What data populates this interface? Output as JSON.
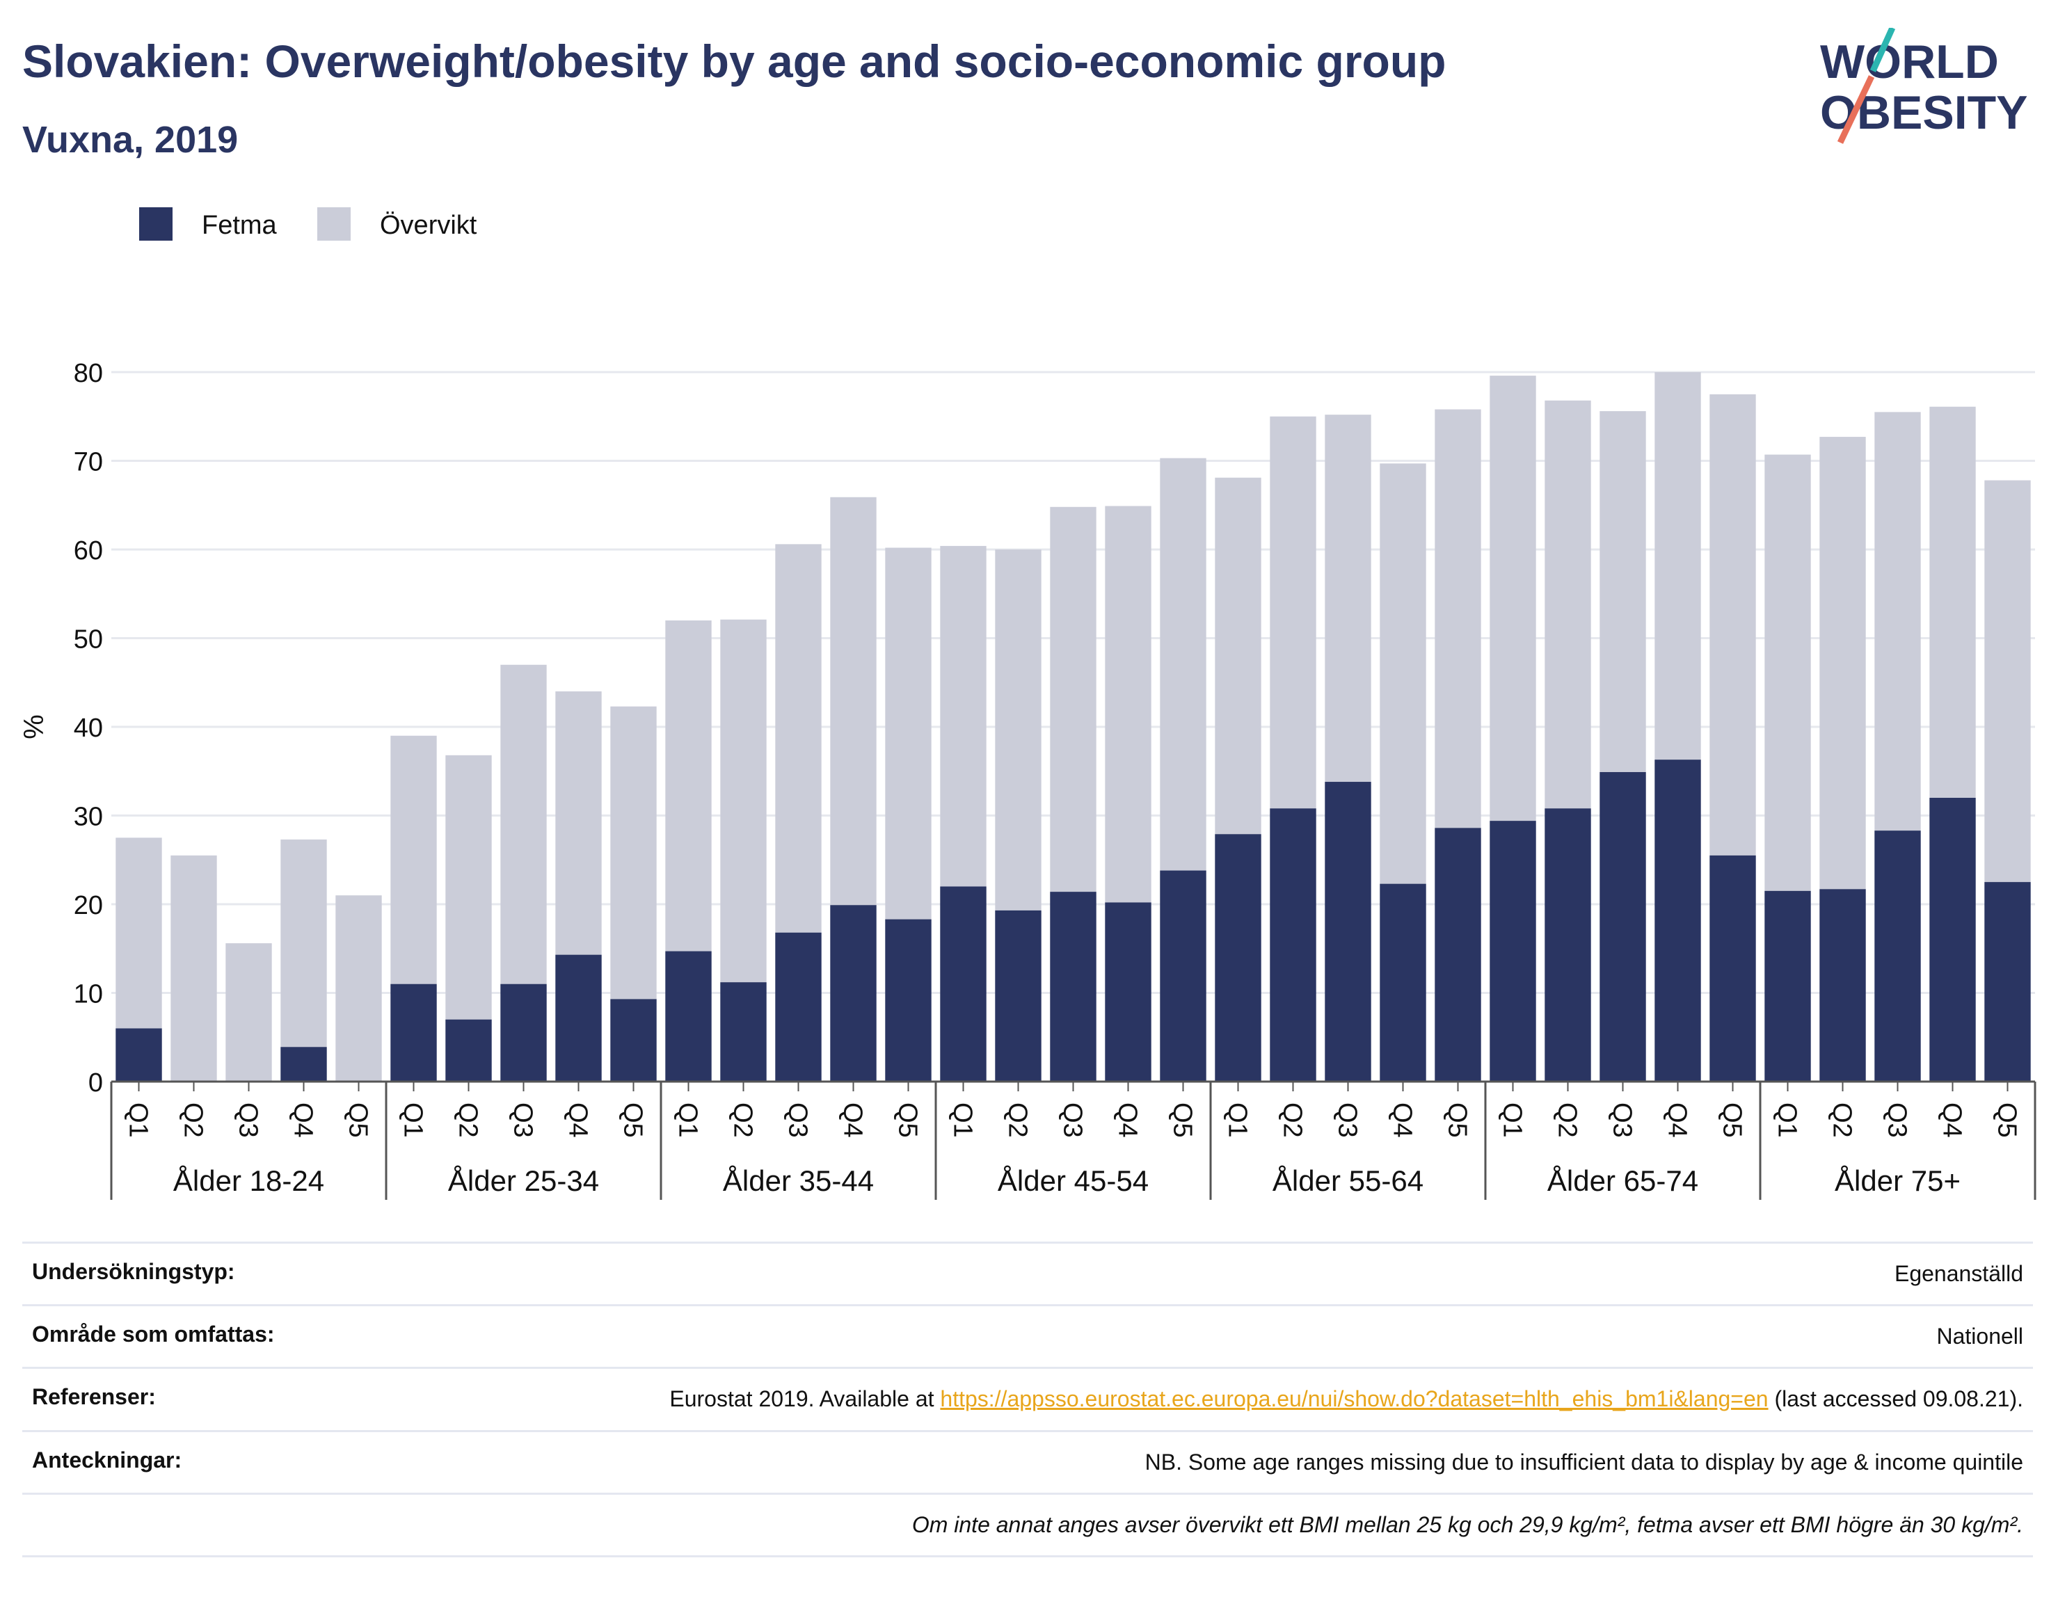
{
  "header": {
    "title": "Slovakien: Overweight/obesity by age and socio-economic group",
    "subtitle": "Vuxna, 2019"
  },
  "logo": {
    "line1": "WORLD",
    "line2": "OBESITY",
    "accent_colors": [
      "#2bb5b0",
      "#e8705a"
    ]
  },
  "chart_data": {
    "type": "bar",
    "stacked": true,
    "ylabel": "%",
    "ylim": [
      0,
      80
    ],
    "yticks": [
      0,
      10,
      20,
      30,
      40,
      50,
      60,
      70,
      80
    ],
    "grid": true,
    "legend_position": "top-left",
    "colors": {
      "fetma": "#2a3562",
      "overvikt": "#cbcdd9"
    },
    "legend": [
      {
        "name": "Fetma",
        "color": "#2a3562"
      },
      {
        "name": "Övervikt",
        "color": "#cbcdd9"
      }
    ],
    "groups": [
      {
        "label": "Ålder 18-24",
        "quintiles": [
          "Q1",
          "Q2",
          "Q3",
          "Q4",
          "Q5"
        ],
        "fetma": [
          6.0,
          0,
          0,
          3.9,
          0
        ],
        "total": [
          27.5,
          25.5,
          15.6,
          27.3,
          21.0
        ]
      },
      {
        "label": "Ålder 25-34",
        "quintiles": [
          "Q1",
          "Q2",
          "Q3",
          "Q4",
          "Q5"
        ],
        "fetma": [
          11.0,
          7.0,
          11.0,
          14.3,
          9.3
        ],
        "total": [
          39.0,
          36.8,
          47.0,
          44.0,
          42.3
        ]
      },
      {
        "label": "Ålder 35-44",
        "quintiles": [
          "Q1",
          "Q2",
          "Q3",
          "Q4",
          "Q5"
        ],
        "fetma": [
          14.7,
          11.2,
          16.8,
          19.9,
          18.3
        ],
        "total": [
          52.0,
          52.1,
          60.6,
          65.9,
          60.2
        ]
      },
      {
        "label": "Ålder 45-54",
        "quintiles": [
          "Q1",
          "Q2",
          "Q3",
          "Q4",
          "Q5"
        ],
        "fetma": [
          22.0,
          19.3,
          21.4,
          20.2,
          23.8
        ],
        "total": [
          60.4,
          60.0,
          64.8,
          64.9,
          70.3
        ]
      },
      {
        "label": "Ålder 55-64",
        "quintiles": [
          "Q1",
          "Q2",
          "Q3",
          "Q4",
          "Q5"
        ],
        "fetma": [
          27.9,
          30.8,
          33.8,
          22.3,
          28.6
        ],
        "total": [
          68.1,
          75.0,
          75.2,
          69.7,
          75.8
        ]
      },
      {
        "label": "Ålder 65-74",
        "quintiles": [
          "Q1",
          "Q2",
          "Q3",
          "Q4",
          "Q5"
        ],
        "fetma": [
          29.4,
          30.8,
          34.9,
          36.3,
          25.5
        ],
        "total": [
          79.6,
          76.8,
          75.6,
          80.0,
          77.5
        ]
      },
      {
        "label": "Ålder 75+",
        "quintiles": [
          "Q1",
          "Q2",
          "Q3",
          "Q4",
          "Q5"
        ],
        "fetma": [
          21.5,
          21.7,
          28.3,
          32.0,
          22.5
        ],
        "total": [
          70.7,
          72.7,
          75.5,
          76.1,
          67.8
        ]
      }
    ]
  },
  "meta": {
    "rows": [
      {
        "label": "Undersökningstyp:",
        "value": "Egenanställd"
      },
      {
        "label": "Område som omfattas:",
        "value": "Nationell"
      },
      {
        "label": "Referenser:",
        "value_prefix": "Eurostat 2019. Available at ",
        "link": "https://appsso.eurostat.ec.europa.eu/nui/show.do?dataset=hlth_ehis_bm1i&lang=en",
        "value_suffix": " (last accessed 09.08.21)."
      },
      {
        "label": "Anteckningar:",
        "value": "NB. Some age ranges missing due to insufficient data to display by age & income quintile"
      }
    ],
    "note": "Om inte annat anges avser övervikt ett BMI mellan 25 kg och 29,9 kg/m², fetma avser ett BMI högre än 30 kg/m²."
  }
}
